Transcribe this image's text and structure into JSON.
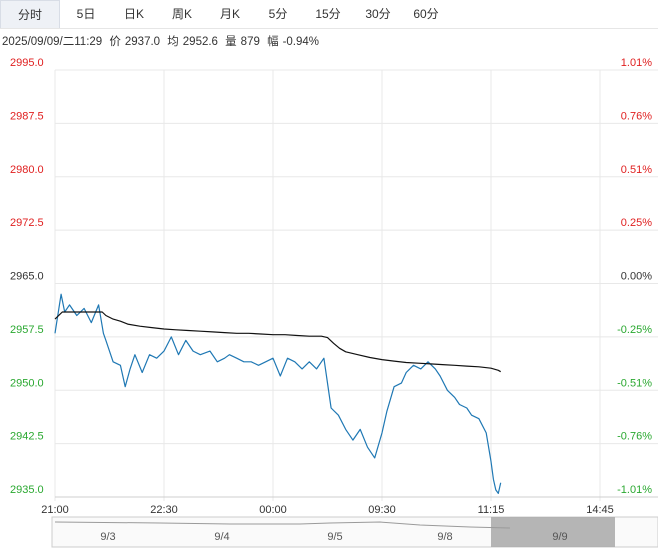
{
  "tabs": [
    {
      "label": "分时",
      "active": true
    },
    {
      "label": "5日"
    },
    {
      "label": "日K"
    },
    {
      "label": "周K"
    },
    {
      "label": "月K"
    },
    {
      "label": "5分"
    },
    {
      "label": "15分"
    },
    {
      "label": "30分"
    },
    {
      "label": "60分"
    }
  ],
  "info": {
    "datetime": "2025/09/09/二11:29",
    "price_label": "价",
    "price": "2937.0",
    "avg_label": "均",
    "avg": "2952.6",
    "vol_label": "量",
    "vol": "879",
    "chg_label": "幅",
    "chg": "-0.94%"
  },
  "colors": {
    "price_line": "#1f78b4",
    "avg_line": "#111111",
    "up": "#e02020",
    "down": "#2aa830",
    "grid": "#e8e8e8"
  },
  "chart_data": {
    "type": "line",
    "prev_close": 2965.0,
    "ylim": [
      2935.0,
      2995.0
    ],
    "y_ticks_left": [
      "2995.0",
      "2987.5",
      "2980.0",
      "2972.5",
      "2965.0",
      "2957.5",
      "2950.0",
      "2942.5",
      "2935.0"
    ],
    "y_ticks_right": [
      "1.01%",
      "0.76%",
      "0.51%",
      "0.25%",
      "0.00%",
      "-0.25%",
      "-0.51%",
      "-0.76%",
      "-1.01%"
    ],
    "x_ticks": [
      "21:00",
      "22:30",
      "00:00",
      "09:30",
      "11:15",
      "14:45"
    ],
    "x_tick_index": [
      0,
      90,
      180,
      270,
      360,
      450
    ],
    "total_points": 450,
    "series": [
      {
        "key": "price",
        "x": [
          0,
          5,
          8,
          12,
          18,
          24,
          30,
          36,
          40,
          42,
          48,
          54,
          58,
          62,
          66,
          72,
          78,
          84,
          90,
          96,
          102,
          108,
          114,
          120,
          128,
          134,
          140,
          144,
          150,
          156,
          162,
          168,
          174,
          180,
          186,
          192,
          198,
          204,
          210,
          216,
          222,
          228,
          234,
          240,
          246,
          252,
          258,
          264,
          270,
          274,
          280,
          286,
          290,
          296,
          302,
          308,
          314,
          318,
          324,
          330,
          334,
          340,
          344,
          350,
          356,
          360,
          362,
          364,
          366,
          368
        ],
        "values": [
          2958.0,
          2963.5,
          2961.0,
          2962.0,
          2960.5,
          2961.5,
          2959.5,
          2962.0,
          2958.0,
          2957.0,
          2954.0,
          2953.5,
          2950.5,
          2953.0,
          2955.0,
          2952.5,
          2955.0,
          2954.5,
          2955.5,
          2957.5,
          2955.0,
          2957.0,
          2955.5,
          2955.0,
          2955.5,
          2954.0,
          2954.5,
          2955.0,
          2954.5,
          2954.0,
          2954.0,
          2953.5,
          2954.0,
          2954.5,
          2952.0,
          2954.5,
          2954.0,
          2953.0,
          2954.0,
          2953.0,
          2954.5,
          2947.5,
          2946.5,
          2944.5,
          2943.0,
          2944.5,
          2942.0,
          2940.5,
          2944.0,
          2947.0,
          2950.5,
          2951.0,
          2952.5,
          2953.5,
          2953.0,
          2954.0,
          2953.0,
          2952.0,
          2950.0,
          2949.0,
          2948.0,
          2947.5,
          2946.5,
          2946.0,
          2944.0,
          2940.0,
          2937.5,
          2936.0,
          2935.5,
          2937.0
        ]
      },
      {
        "key": "avg",
        "x": [
          0,
          6,
          15,
          24,
          33,
          36,
          39,
          42,
          48,
          54,
          60,
          70,
          80,
          90,
          100,
          110,
          120,
          130,
          140,
          150,
          160,
          170,
          180,
          190,
          200,
          210,
          220,
          225,
          230,
          235,
          240,
          250,
          260,
          270,
          280,
          290,
          300,
          310,
          320,
          330,
          340,
          350,
          360,
          366,
          368
        ],
        "values": [
          2960.0,
          2961.0,
          2961.0,
          2961.0,
          2961.0,
          2961.0,
          2961.0,
          2960.5,
          2960.0,
          2959.7,
          2959.3,
          2959.0,
          2958.8,
          2958.6,
          2958.5,
          2958.4,
          2958.3,
          2958.2,
          2958.1,
          2958.0,
          2958.0,
          2957.9,
          2957.8,
          2957.8,
          2957.7,
          2957.6,
          2957.6,
          2957.4,
          2956.6,
          2955.9,
          2955.4,
          2955.0,
          2954.6,
          2954.3,
          2954.1,
          2953.9,
          2953.8,
          2953.7,
          2953.6,
          2953.5,
          2953.4,
          2953.3,
          2953.1,
          2952.8,
          2952.6
        ]
      }
    ]
  },
  "navigator": {
    "labels": [
      "9/3",
      "9/4",
      "9/5",
      "9/8",
      "9/9"
    ]
  }
}
